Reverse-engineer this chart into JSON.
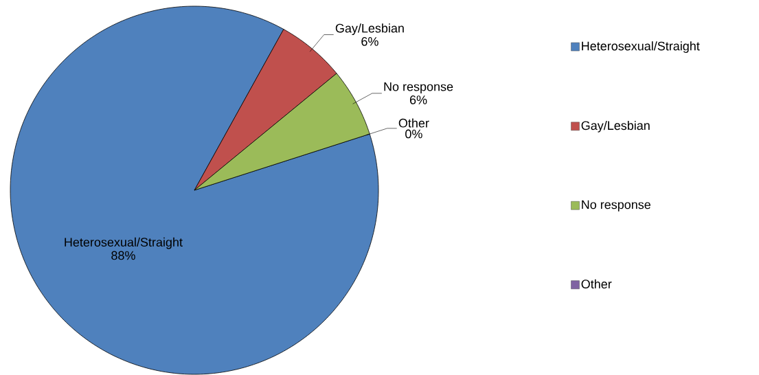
{
  "chart_data": {
    "type": "pie",
    "categories": [
      "Heterosexual/Straight",
      "Gay/Lesbian",
      "No response",
      "Other"
    ],
    "values": [
      88,
      6,
      6,
      0
    ],
    "value_labels": [
      "88%",
      "6%",
      "6%",
      "0%"
    ],
    "colors": [
      "#4f81bd",
      "#c0504d",
      "#9bbb59",
      "#8064a2"
    ],
    "legend": "right",
    "data_labels": true
  }
}
